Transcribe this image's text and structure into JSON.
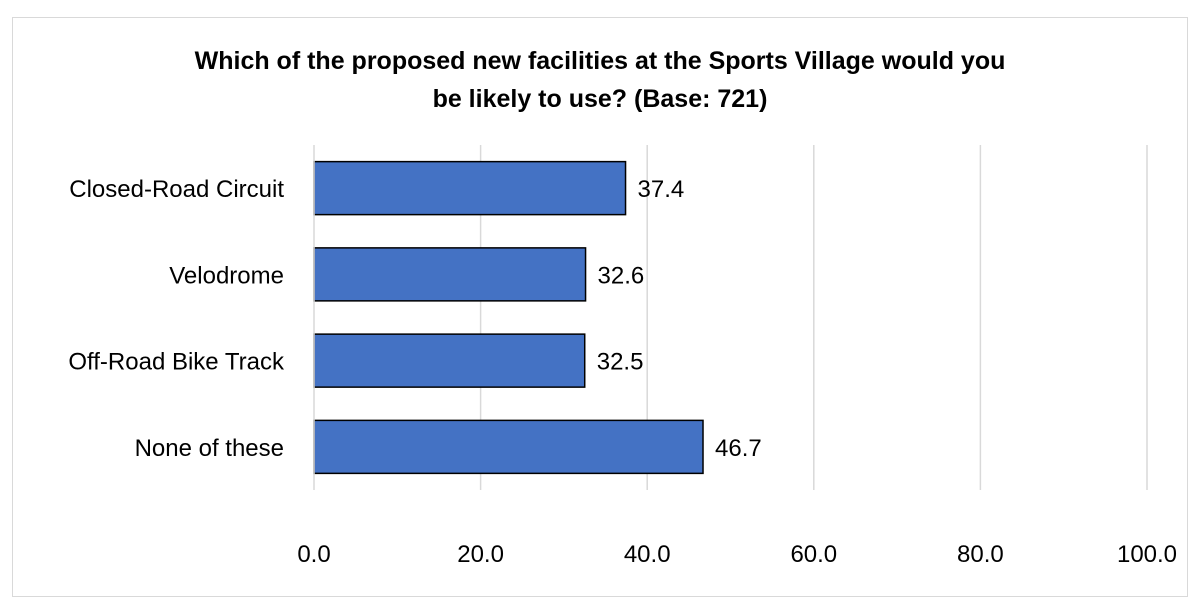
{
  "chart_data": {
    "type": "bar",
    "orientation": "horizontal",
    "title": "Which of the proposed new facilities at the Sports Village would you be likely to use? (Base: 721)",
    "title_lines": [
      "Which of the proposed new facilities at the Sports Village would you",
      "be likely to use? (Base: 721)"
    ],
    "categories": [
      "Closed-Road Circuit",
      "Velodrome",
      "Off-Road Bike Track",
      "None of these"
    ],
    "values": [
      37.4,
      32.6,
      32.5,
      46.7
    ],
    "value_labels": [
      "37.4",
      "32.6",
      "32.5",
      "46.7"
    ],
    "xlim": [
      0,
      100
    ],
    "x_ticks": [
      0,
      20,
      40,
      60,
      80,
      100
    ],
    "x_tick_labels": [
      "0.0",
      "20.0",
      "40.0",
      "60.0",
      "80.0",
      "100.0"
    ],
    "xlabel": "",
    "ylabel": "",
    "grid": "vertical",
    "legend": "none",
    "bar_color": "#4472C4",
    "bar_edge_color": "#000000",
    "gridline_color": "#d9d9d9"
  }
}
